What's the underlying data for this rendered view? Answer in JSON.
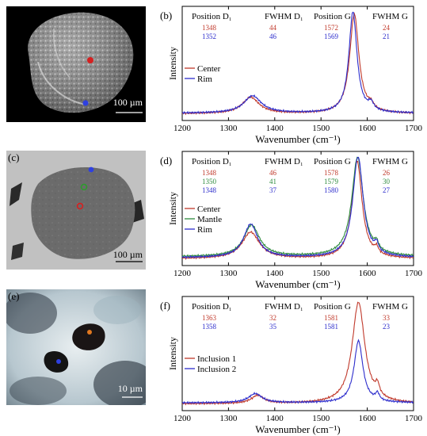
{
  "panels": {
    "a": {
      "label": "(a)",
      "scale": "100 µm"
    },
    "c": {
      "label": "(c)",
      "scale": "100 µm"
    },
    "e": {
      "label": "(e)",
      "scale": "10 µm"
    }
  },
  "colors": {
    "red": "#c0392b",
    "green": "#2e8b3e",
    "blue": "#2d2dcc",
    "black": "#000000"
  },
  "chart_data": [
    {
      "id": "b",
      "panel_label": "(b)",
      "type": "line",
      "xlabel": "Wavenumber (cm⁻¹)",
      "ylabel": "Intensity",
      "xlim": [
        1200,
        1700
      ],
      "xticks": [
        "1200",
        "1300",
        "1400",
        "1500",
        "1600",
        "1700"
      ],
      "table": {
        "headers": [
          "Position D₁",
          "FWHM D₁",
          "Position G",
          "FWHM G"
        ],
        "rows": [
          {
            "color": "#c0392b",
            "values": [
              "1348",
              "44",
              "1572",
              "24"
            ]
          },
          {
            "color": "#2d2dcc",
            "values": [
              "1352",
              "46",
              "1569",
              "21"
            ]
          }
        ]
      },
      "series": [
        {
          "name": "Center",
          "color": "#c0392b",
          "d1": {
            "pos": 1348,
            "fwhm": 44,
            "amp": 0.16
          },
          "g": {
            "pos": 1572,
            "fwhm": 24,
            "amp": 0.98
          },
          "d2": {
            "pos": 1608,
            "fwhm": 14,
            "amp": 0.05
          },
          "baseline": 0.02
        },
        {
          "name": "Rim",
          "color": "#2d2dcc",
          "d1": {
            "pos": 1352,
            "fwhm": 46,
            "amp": 0.17
          },
          "g": {
            "pos": 1569,
            "fwhm": 21,
            "amp": 1.0
          },
          "d2": {
            "pos": 1608,
            "fwhm": 14,
            "amp": 0.07
          },
          "baseline": 0.025
        }
      ]
    },
    {
      "id": "d",
      "panel_label": "(d)",
      "type": "line",
      "xlabel": "Wavenumber (cm⁻¹)",
      "ylabel": "Intensity",
      "xlim": [
        1200,
        1700
      ],
      "xticks": [
        "1200",
        "1300",
        "1400",
        "1500",
        "1600",
        "1700"
      ],
      "table": {
        "headers": [
          "Position D₁",
          "FWHM D₁",
          "Position G",
          "FWHM G"
        ],
        "rows": [
          {
            "color": "#c0392b",
            "values": [
              "1348",
              "46",
              "1578",
              "26"
            ]
          },
          {
            "color": "#2e8b3e",
            "values": [
              "1350",
              "41",
              "1579",
              "30"
            ]
          },
          {
            "color": "#2d2dcc",
            "values": [
              "1348",
              "37",
              "1580",
              "27"
            ]
          }
        ]
      },
      "series": [
        {
          "name": "Center",
          "color": "#c0392b",
          "d1": {
            "pos": 1348,
            "fwhm": 46,
            "amp": 0.26
          },
          "g": {
            "pos": 1578,
            "fwhm": 26,
            "amp": 0.96
          },
          "d2": {
            "pos": 1620,
            "fwhm": 10,
            "amp": 0.06
          },
          "baseline": 0.02
        },
        {
          "name": "Mantle",
          "color": "#2e8b3e",
          "d1": {
            "pos": 1350,
            "fwhm": 41,
            "amp": 0.31
          },
          "g": {
            "pos": 1579,
            "fwhm": 30,
            "amp": 0.98
          },
          "d2": {
            "pos": 1620,
            "fwhm": 10,
            "amp": 0.07
          },
          "baseline": 0.04
        },
        {
          "name": "Rim",
          "color": "#2d2dcc",
          "d1": {
            "pos": 1348,
            "fwhm": 37,
            "amp": 0.33
          },
          "g": {
            "pos": 1580,
            "fwhm": 27,
            "amp": 1.0
          },
          "d2": {
            "pos": 1620,
            "fwhm": 10,
            "amp": 0.08
          },
          "baseline": 0.03
        }
      ]
    },
    {
      "id": "f",
      "panel_label": "(f)",
      "type": "line",
      "xlabel": "Wavenumber (cm⁻¹)",
      "ylabel": "Intensity",
      "xlim": [
        1200,
        1700
      ],
      "xticks": [
        "1200",
        "1300",
        "1400",
        "1500",
        "1600",
        "1700"
      ],
      "table": {
        "headers": [
          "Position D₁",
          "FWHM D₁",
          "Position G",
          "FWHM G"
        ],
        "rows": [
          {
            "color": "#c0392b",
            "values": [
              "1363",
              "32",
              "1581",
              "33"
            ]
          },
          {
            "color": "#2d2dcc",
            "values": [
              "1358",
              "35",
              "1581",
              "23"
            ]
          }
        ]
      },
      "series": [
        {
          "name": "Inclusion 1",
          "color": "#c0392b",
          "d1": {
            "pos": 1363,
            "fwhm": 32,
            "amp": 0.08
          },
          "g": {
            "pos": 1581,
            "fwhm": 33,
            "amp": 1.0
          },
          "d2": {
            "pos": 1622,
            "fwhm": 10,
            "amp": 0.1
          },
          "baseline": 0.02
        },
        {
          "name": "Inclusion 2",
          "color": "#2d2dcc",
          "d1": {
            "pos": 1358,
            "fwhm": 35,
            "amp": 0.09
          },
          "g": {
            "pos": 1581,
            "fwhm": 23,
            "amp": 0.61
          },
          "d2": {
            "pos": 1622,
            "fwhm": 10,
            "amp": 0.07
          },
          "baseline": 0.03
        }
      ]
    }
  ]
}
